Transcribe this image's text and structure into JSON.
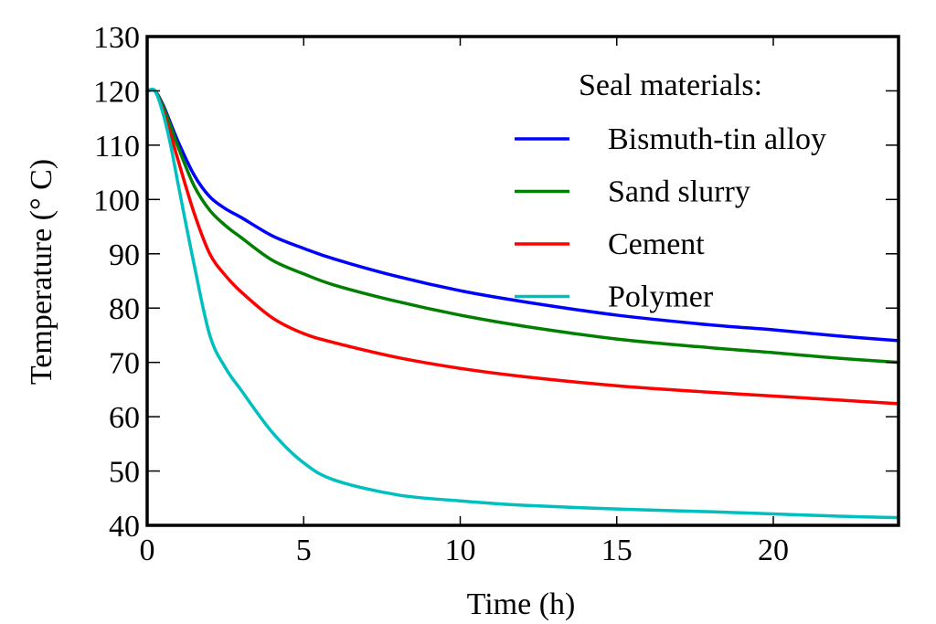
{
  "chart_data": {
    "type": "line",
    "title": "",
    "xlabel": "Time (h)",
    "ylabel": "Temperature (° C)",
    "xlim": [
      0,
      24
    ],
    "ylim": [
      40,
      130
    ],
    "xticks": [
      0,
      5,
      10,
      15,
      20
    ],
    "xtick_labels": [
      "0",
      "5",
      "10",
      "15",
      "20"
    ],
    "yticks": [
      40,
      50,
      60,
      70,
      80,
      90,
      100,
      110,
      120,
      130
    ],
    "ytick_labels": [
      "40",
      "50",
      "60",
      "70",
      "80",
      "90",
      "100",
      "110",
      "120",
      "130"
    ],
    "grid": false,
    "legend": {
      "title": "Seal materials:",
      "placement": "top-right"
    },
    "x": [
      0,
      0.25,
      0.5,
      0.75,
      1,
      1.5,
      2,
      2.5,
      3,
      4,
      5,
      6,
      8,
      10,
      12,
      15,
      18,
      20,
      22,
      24
    ],
    "series": [
      {
        "name": "Bismuth-tin alloy",
        "color": "#0000ff",
        "values": [
          120,
          120,
          117.5,
          114,
          110.5,
          104.5,
          100.5,
          98.3,
          96.7,
          93.3,
          91.0,
          89.0,
          85.8,
          83.2,
          81.2,
          78.7,
          76.9,
          76.0,
          74.9,
          74.0
        ]
      },
      {
        "name": "Sand slurry",
        "color": "#008000",
        "values": [
          120,
          120,
          117.2,
          113.5,
          109.5,
          102.5,
          98.0,
          95.2,
          93.0,
          88.8,
          86.3,
          84.2,
          81.2,
          78.7,
          76.7,
          74.3,
          72.7,
          71.8,
          70.8,
          70.0
        ]
      },
      {
        "name": "Cement",
        "color": "#ff0000",
        "values": [
          120,
          120,
          116.5,
          112,
          107,
          97.5,
          90.0,
          86.0,
          83.0,
          78.2,
          75.3,
          73.6,
          70.9,
          68.9,
          67.4,
          65.7,
          64.5,
          63.8,
          63.1,
          62.4
        ]
      },
      {
        "name": "Polymer",
        "color": "#00bfbf",
        "values": [
          120,
          120,
          116,
          110,
          102.5,
          88,
          75.0,
          69.0,
          64.9,
          57.1,
          51.5,
          48.3,
          45.6,
          44.5,
          43.7,
          43.0,
          42.5,
          42.1,
          41.7,
          41.4
        ]
      }
    ]
  }
}
